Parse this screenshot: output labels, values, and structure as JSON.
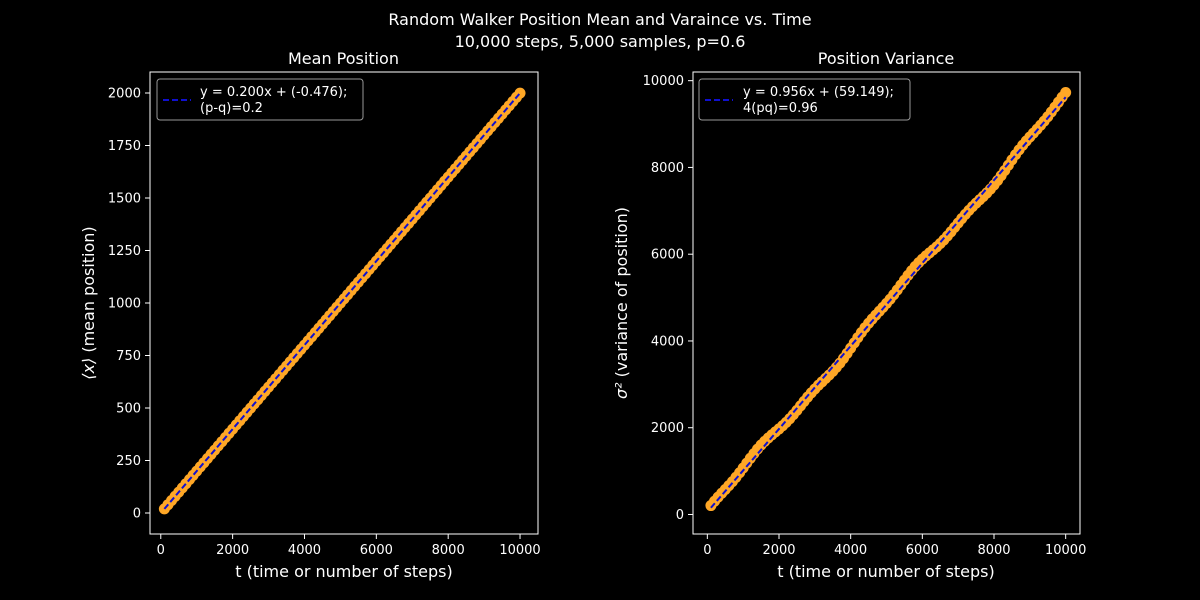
{
  "figure": {
    "title_line1": "Random Walker Position Mean and Varaince vs. Time",
    "title_line2": "10,000 steps, 5,000 samples, p=0.6",
    "colors": {
      "background": "#000000",
      "foreground": "#ffffff",
      "data": "#ffa726",
      "fit": "#1010d0"
    }
  },
  "chart_data": [
    {
      "type": "scatter",
      "title": "Mean Position",
      "xlabel": "t (time or number of steps)",
      "ylabel_symbol": "⟨x⟩",
      "ylabel_text": "(mean position)",
      "xlim": [
        -300,
        10500
      ],
      "ylim": [
        -100,
        2100
      ],
      "xticks": [
        0,
        2000,
        4000,
        6000,
        8000,
        10000
      ],
      "yticks": [
        0,
        250,
        500,
        750,
        1000,
        1250,
        1500,
        1750,
        2000
      ],
      "legend": {
        "placement": "upper-left",
        "line1": "y = 0.200x + (-0.476);",
        "line2": "(p-q)=0.2"
      },
      "series": [
        {
          "kind": "points",
          "x_start": 100,
          "x_end": 10000,
          "x_step": 100,
          "slope": 0.2,
          "intercept": -0.476,
          "noise": 0
        },
        {
          "kind": "fit-line",
          "x": [
            100,
            10000
          ],
          "slope": 0.2,
          "intercept": -0.476
        }
      ]
    },
    {
      "type": "scatter",
      "title": "Position Variance",
      "xlabel": "t (time or number of steps)",
      "ylabel_symbol": "σ²",
      "ylabel_text": "(variance of position)",
      "xlim": [
        -400,
        10400
      ],
      "ylim": [
        -450,
        10200
      ],
      "xticks": [
        0,
        2000,
        4000,
        6000,
        8000,
        10000
      ],
      "yticks": [
        0,
        2000,
        4000,
        6000,
        8000,
        10000
      ],
      "legend": {
        "placement": "upper-left",
        "line1": "y = 0.956x + (59.149);",
        "line2": "4(pq)=0.96"
      },
      "series": [
        {
          "kind": "points",
          "x_start": 100,
          "x_end": 10000,
          "x_step": 100,
          "slope": 0.956,
          "intercept": 59.149,
          "noise": 80
        },
        {
          "kind": "fit-line",
          "x": [
            100,
            10000
          ],
          "slope": 0.956,
          "intercept": 59.149
        }
      ]
    }
  ]
}
